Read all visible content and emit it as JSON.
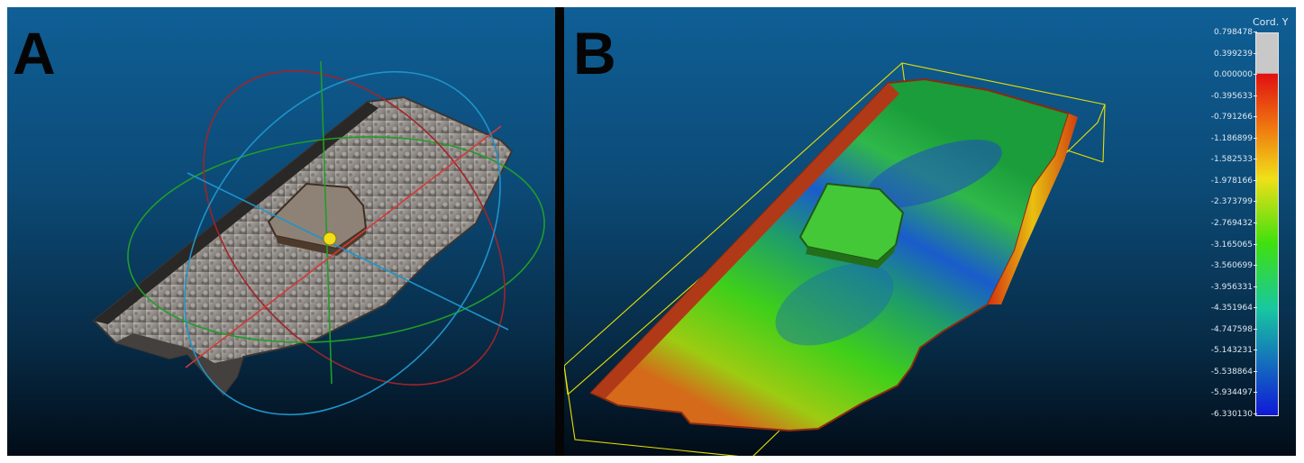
{
  "panels": {
    "a": {
      "label": "A"
    },
    "b": {
      "label": "B"
    }
  },
  "scale": {
    "title": "Cord. Y",
    "ticks": [
      "0.798478",
      "0.399239",
      "0.000000",
      "-0.395633",
      "-0.791266",
      "-1.186899",
      "-1.582533",
      "-1.978166",
      "-2.373799",
      "-2.769432",
      "-3.165065",
      "-3.560699",
      "-3.956331",
      "-4.351964",
      "-4.747598",
      "-5.143231",
      "-5.538864",
      "-5.934497",
      "-6.330130"
    ],
    "colors": {
      "above": "#c8c8c8",
      "top": "#e01010",
      "mid": "#3fe00f",
      "bottom": "#1018d8"
    }
  }
}
